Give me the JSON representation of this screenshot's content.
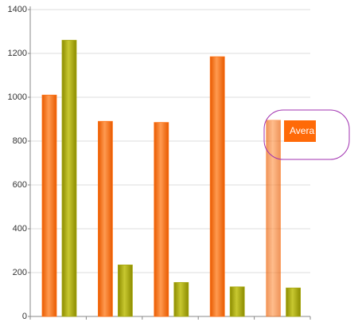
{
  "chart_data": {
    "type": "bar",
    "categories": [
      null,
      null,
      null,
      null,
      null
    ],
    "series": [
      {
        "color": "#ff7214",
        "values": [
          1010,
          890,
          885,
          1185,
          895
        ]
      },
      {
        "color": "#a8a812",
        "values": [
          1260,
          235,
          155,
          135,
          130
        ]
      }
    ],
    "ylim": [
      0,
      1400
    ],
    "yticks": [
      0,
      200,
      400,
      600,
      800,
      1000,
      1200,
      1400
    ],
    "grid": true,
    "highlighted": 4,
    "tooltip": "Avera"
  }
}
